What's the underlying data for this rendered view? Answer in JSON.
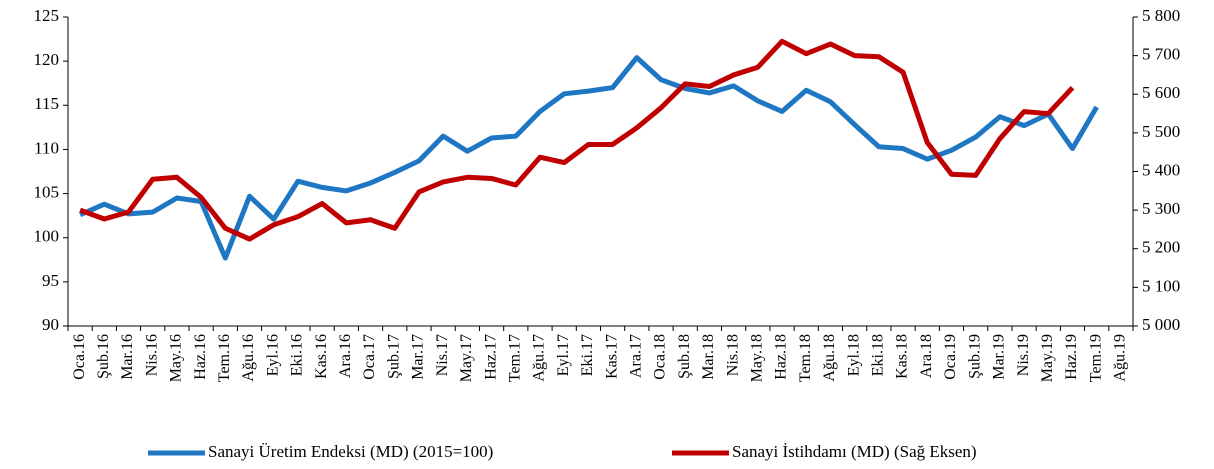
{
  "chart_data": {
    "type": "line",
    "categories": [
      "Oca.16",
      "Şub.16",
      "Mar.16",
      "Nis.16",
      "May.16",
      "Haz.16",
      "Tem.16",
      "Ağu.16",
      "Eyl.16",
      "Eki.16",
      "Kas.16",
      "Ara.16",
      "Oca.17",
      "Şub.17",
      "Mar.17",
      "Nis.17",
      "May.17",
      "Haz.17",
      "Tem.17",
      "Ağu.17",
      "Eyl.17",
      "Eki.17",
      "Kas.17",
      "Ara.17",
      "Oca.18",
      "Şub.18",
      "Mar.18",
      "Nis.18",
      "May.18",
      "Haz.18",
      "Tem.18",
      "Ağu.18",
      "Eyl.18",
      "Eki.18",
      "Kas.18",
      "Ara.18",
      "Oca.19",
      "Şub.19",
      "Mar.19",
      "Nis.19",
      "May.19",
      "Haz.19",
      "Tem.19",
      "Ağu.19"
    ],
    "series": [
      {
        "name": "Sanayi Üretim Endeksi (MD) (2015=100)",
        "color": "#1f77c4",
        "values": [
          102.6,
          103.8,
          102.7,
          102.9,
          104.5,
          104.1,
          97.7,
          104.7,
          102.1,
          106.4,
          105.7,
          105.3,
          106.2,
          107.4,
          108.7,
          111.5,
          109.8,
          111.3,
          111.5,
          114.3,
          116.3,
          116.6,
          117.0,
          120.4,
          117.9,
          116.9,
          116.4,
          117.2,
          115.5,
          114.3,
          116.7,
          115.4,
          112.8,
          110.3,
          110.1,
          108.9,
          109.9,
          111.4,
          113.7,
          112.7,
          114.0,
          110.1,
          114.8,
          null
        ]
      },
      {
        "name": "Sanayi İstihdamı (MD) (Sağ Eksen)",
        "color": "#c00000",
        "axis": "y2",
        "values": [
          5300,
          5277,
          5295,
          5380,
          5385,
          5333,
          5253,
          5225,
          5262,
          5283,
          5317,
          5267,
          5275,
          5253,
          5347,
          5373,
          5385,
          5382,
          5365,
          5437,
          5423,
          5470,
          5470,
          5513,
          5565,
          5627,
          5620,
          5650,
          5670,
          5737,
          5705,
          5730,
          5700,
          5697,
          5657,
          5475,
          5393,
          5390,
          5485,
          5555,
          5550,
          5617,
          null,
          null
        ]
      }
    ],
    "ylim": [
      90,
      125
    ],
    "yticks": [
      90,
      95,
      100,
      105,
      110,
      115,
      120,
      125
    ],
    "y2lim": [
      5000,
      5800
    ],
    "y2ticks": [
      {
        "value": 5000,
        "label": "5 000"
      },
      {
        "value": 5100,
        "label": "5 100"
      },
      {
        "value": 5200,
        "label": "5 200"
      },
      {
        "value": 5300,
        "label": "5 300"
      },
      {
        "value": 5400,
        "label": "5 400"
      },
      {
        "value": 5500,
        "label": "5 500"
      },
      {
        "value": 5600,
        "label": "5 600"
      },
      {
        "value": 5700,
        "label": "5 700"
      },
      {
        "value": 5800,
        "label": "5 800"
      }
    ],
    "grid": false,
    "legend": "bottom"
  }
}
